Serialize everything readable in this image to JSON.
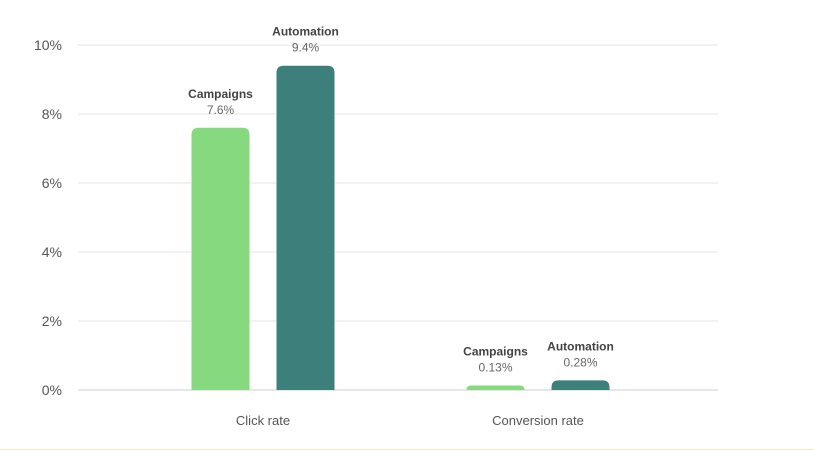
{
  "chart_data": {
    "type": "bar",
    "categories": [
      "Click rate",
      "Conversion rate"
    ],
    "series": [
      {
        "name": "Campaigns",
        "values": [
          7.6,
          0.13
        ],
        "labels": [
          "7.6%",
          "0.13%"
        ],
        "color": "#86d97f"
      },
      {
        "name": "Automation",
        "values": [
          9.4,
          0.28
        ],
        "labels": [
          "9.4%",
          "0.28%"
        ],
        "color": "#3d7f7a"
      }
    ],
    "title": "",
    "xlabel": "",
    "ylabel": "",
    "ylim": [
      0,
      10
    ],
    "yticks": [
      0,
      2,
      4,
      6,
      8,
      10
    ],
    "ytick_labels": [
      "0%",
      "2%",
      "4%",
      "6%",
      "8%",
      "10%"
    ],
    "grid": true,
    "legend": "none"
  },
  "colors": {
    "grid": "#e6e6e6",
    "axis": "#cfcfcf",
    "tick_text": "#555555",
    "series_label_text": "#444444",
    "value_label_text": "#666666",
    "bottom_rule": "#f6ecc4"
  }
}
